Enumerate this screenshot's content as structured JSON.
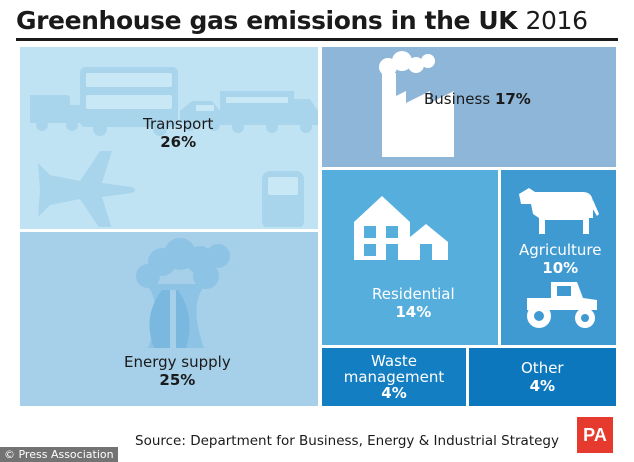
{
  "title_main": "Greenhouse gas emissions in the UK",
  "title_year": "2016",
  "source": "Source: Department for Business, Energy & Industrial Strategy",
  "logo": "PA",
  "credit": "© Press Association",
  "icons": [
    "bus-icon",
    "van-icon",
    "car-icon",
    "truck-icon",
    "plane-icon",
    "train-icon",
    "factory-icon",
    "power-station-icon",
    "houses-icon",
    "cow-icon",
    "tractor-icon"
  ],
  "colors": {
    "transport": "#bfe3f3",
    "business": "#8eb6d9",
    "energy": "#a6cfe9",
    "residential": "#56aedd",
    "agriculture": "#3f9ad2",
    "waste": "#137ec2",
    "other": "#0c77bd",
    "title": "#1a1a1a",
    "logo": "#e63a2e"
  },
  "chart_data": {
    "type": "treemap",
    "title": "Greenhouse gas emissions in the UK 2016",
    "categories": [
      "Transport",
      "Energy supply",
      "Business",
      "Residential",
      "Agriculture",
      "Waste management",
      "Other"
    ],
    "values": [
      26,
      25,
      17,
      14,
      10,
      4,
      4
    ],
    "unit": "%",
    "value_labels": [
      "26%",
      "25%",
      "17%",
      "14%",
      "10%",
      "4%",
      "4%"
    ],
    "source": "Source: Department for Business, Energy & Industrial Strategy"
  }
}
